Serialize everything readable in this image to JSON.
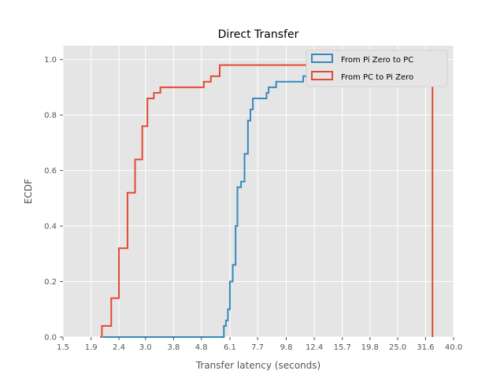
{
  "chart_data": {
    "type": "line",
    "subtype": "step-ecdf",
    "title": "Direct Transfer",
    "xlabel": "Transfer latency (seconds)",
    "ylabel": "ECDF",
    "xscale": "log",
    "xlim": [
      1.5,
      40.0
    ],
    "ylim": [
      0.0,
      1.05
    ],
    "xticks": [
      1.5,
      1.9,
      2.4,
      3.0,
      3.8,
      4.8,
      6.1,
      7.7,
      9.8,
      12.4,
      15.7,
      19.8,
      25.0,
      31.6,
      40.0
    ],
    "xtick_labels": [
      "1.5",
      "1.9",
      "2.4",
      "3.0",
      "3.8",
      "4.8",
      "6.1",
      "7.7",
      "9.8",
      "12.4",
      "15.7",
      "19.8",
      "25.0",
      "31.6",
      "40.0"
    ],
    "yticks": [
      0.0,
      0.2,
      0.4,
      0.6,
      0.8,
      1.0
    ],
    "ytick_labels": [
      "0.0",
      "0.2",
      "0.4",
      "0.6",
      "0.8",
      "1.0"
    ],
    "grid": true,
    "legend_position": "top-right",
    "series": [
      {
        "name": "From Pi Zero to PC",
        "color": "#348ABD",
        "points": [
          [
            2.1,
            0.0
          ],
          [
            5.8,
            0.04
          ],
          [
            5.9,
            0.06
          ],
          [
            6.0,
            0.1
          ],
          [
            6.1,
            0.2
          ],
          [
            6.25,
            0.26
          ],
          [
            6.4,
            0.4
          ],
          [
            6.5,
            0.54
          ],
          [
            6.7,
            0.56
          ],
          [
            6.9,
            0.66
          ],
          [
            7.1,
            0.78
          ],
          [
            7.25,
            0.82
          ],
          [
            7.4,
            0.86
          ],
          [
            8.3,
            0.88
          ],
          [
            8.45,
            0.9
          ],
          [
            9.0,
            0.92
          ],
          [
            11.3,
            0.94
          ],
          [
            13.0,
            1.0
          ],
          [
            33.5,
            1.0
          ]
        ]
      },
      {
        "name": "From PC to Pi Zero",
        "color": "#E24A33",
        "points": [
          [
            2.05,
            0.0
          ],
          [
            2.08,
            0.04
          ],
          [
            2.25,
            0.14
          ],
          [
            2.4,
            0.32
          ],
          [
            2.58,
            0.52
          ],
          [
            2.75,
            0.64
          ],
          [
            2.92,
            0.76
          ],
          [
            3.05,
            0.86
          ],
          [
            3.22,
            0.88
          ],
          [
            3.4,
            0.9
          ],
          [
            4.9,
            0.92
          ],
          [
            5.2,
            0.94
          ],
          [
            5.6,
            0.98
          ],
          [
            33.5,
            0.98
          ],
          [
            33.5,
            0.0
          ]
        ]
      }
    ]
  }
}
